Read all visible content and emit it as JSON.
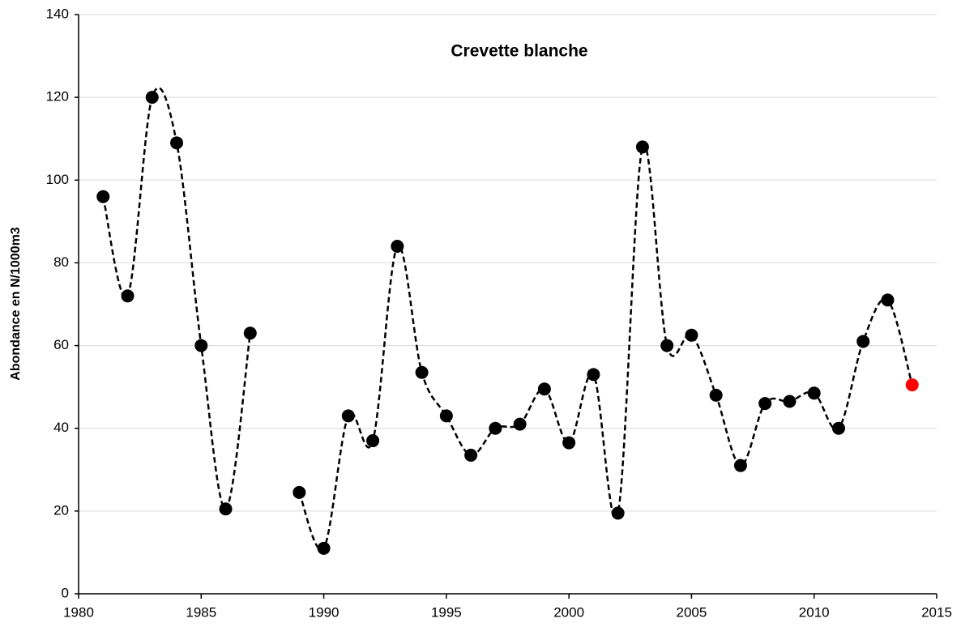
{
  "chart_data": {
    "type": "line",
    "title": "Crevette blanche",
    "y_label": "Abondance en N/1000m3",
    "x": [
      1981,
      1982,
      1983,
      1984,
      1985,
      1986,
      1987,
      1988,
      1989,
      1990,
      1991,
      1992,
      1993,
      1994,
      1995,
      1996,
      1997,
      1998,
      1999,
      2000,
      2001,
      2002,
      2003,
      2004,
      2005,
      2006,
      2007,
      2008,
      2009,
      2010,
      2011,
      2012,
      2013,
      2014
    ],
    "series": [
      {
        "color": "#000000",
        "values": [
          96,
          72,
          120,
          109,
          60,
          20.5,
          63,
          null,
          24.5,
          11,
          43,
          37,
          84,
          53.5,
          43,
          33.5,
          40,
          41,
          49.5,
          36.5,
          53,
          19.5,
          108,
          60,
          62.5,
          48,
          31,
          46,
          46.5,
          48.5,
          40,
          61,
          71,
          50.5
        ],
        "marker_colors": [
          "#000000",
          "#000000",
          "#000000",
          "#000000",
          "#000000",
          "#000000",
          "#000000",
          "#000000",
          "#000000",
          "#000000",
          "#000000",
          "#000000",
          "#000000",
          "#000000",
          "#000000",
          "#000000",
          "#000000",
          "#000000",
          "#000000",
          "#000000",
          "#000000",
          "#000000",
          "#000000",
          "#000000",
          "#000000",
          "#000000",
          "#000000",
          "#000000",
          "#000000",
          "#000000",
          "#000000",
          "#000000",
          "#000000",
          "#ff0000"
        ]
      }
    ],
    "line_style": "dashed",
    "smooth": true,
    "xlim": [
      1980,
      2015
    ],
    "xticks": [
      1980,
      1985,
      1990,
      1995,
      2000,
      2005,
      2010,
      2015
    ],
    "ylim": [
      0,
      140
    ],
    "yticks": [
      0,
      20,
      40,
      60,
      80,
      100,
      120,
      140
    ],
    "grid": true
  }
}
